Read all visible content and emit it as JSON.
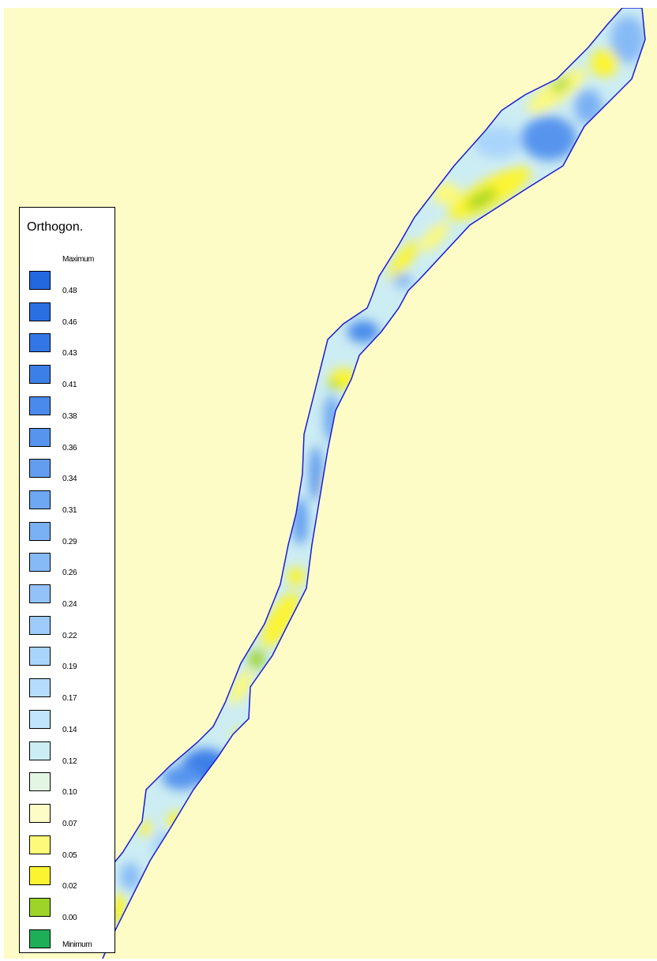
{
  "map": {
    "background_color": "#fdfbc6",
    "boundary_color": "#1a1ad9",
    "fill_scale": "Orthogonal component, blue = high, yellow/green = low"
  },
  "legend": {
    "title": "Orthogon.",
    "maximum_label": "Maximum",
    "minimum_label": "Minimum",
    "classes": [
      {
        "label": "0.48",
        "color": "#2468e0"
      },
      {
        "label": "0.46",
        "color": "#2a6fe2"
      },
      {
        "label": "0.43",
        "color": "#3377e6"
      },
      {
        "label": "0.41",
        "color": "#3d7fe8"
      },
      {
        "label": "0.38",
        "color": "#4a8aec"
      },
      {
        "label": "0.36",
        "color": "#5794ee"
      },
      {
        "label": "0.34",
        "color": "#629df0"
      },
      {
        "label": "0.31",
        "color": "#6ea7f2"
      },
      {
        "label": "0.29",
        "color": "#7ab0f4"
      },
      {
        "label": "0.26",
        "color": "#86baf6"
      },
      {
        "label": "0.24",
        "color": "#92c2f8"
      },
      {
        "label": "0.22",
        "color": "#9ecbf9"
      },
      {
        "label": "0.19",
        "color": "#a9d4fb"
      },
      {
        "label": "0.17",
        "color": "#b4dcfc"
      },
      {
        "label": "0.14",
        "color": "#c0e5fc"
      },
      {
        "label": "0.12",
        "color": "#cdedf4"
      },
      {
        "label": "0.10",
        "color": "#e3f5e3"
      },
      {
        "label": "0.07",
        "color": "#fdfbc6"
      },
      {
        "label": "0.05",
        "color": "#fdf97a"
      },
      {
        "label": "0.02",
        "color": "#fcf430"
      },
      {
        "label": "0.00",
        "color": "#9cd428"
      },
      {
        "label": "",
        "color": "#1fae58"
      }
    ]
  }
}
